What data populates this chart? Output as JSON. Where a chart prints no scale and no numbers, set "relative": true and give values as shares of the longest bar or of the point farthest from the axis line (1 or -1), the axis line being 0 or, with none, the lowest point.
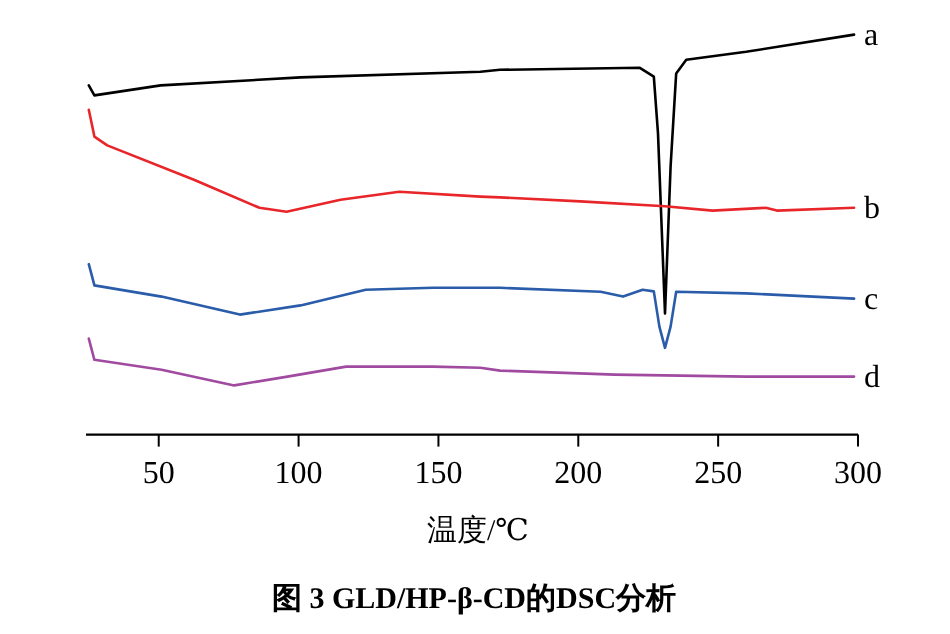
{
  "chart_data": {
    "type": "line",
    "relative": true,
    "title": "图 3 GLD/HP-β-CD的DSC分析",
    "xlabel": "温度/℃",
    "xlim": [
      24,
      300
    ],
    "xticks": [
      50,
      100,
      150,
      200,
      250,
      300
    ],
    "series": [
      {
        "name": "a",
        "color": "#000000",
        "x": [
          25,
          27,
          50.7,
          100.7,
          165,
          172,
          222,
          227,
          228.5,
          231,
          233,
          235,
          238.6,
          260,
          298.6
        ],
        "values": [
          0.873,
          0.848,
          0.873,
          0.893,
          0.907,
          0.912,
          0.917,
          0.895,
          0.753,
          0.303,
          0.671,
          0.903,
          0.937,
          0.957,
          1.0
        ]
      },
      {
        "name": "b",
        "color": "#e8262a",
        "x": [
          25,
          27,
          31.6,
          62.6,
          86,
          95.7,
          115,
          136,
          165,
          172,
          200.7,
          231,
          248,
          267,
          271,
          298.6
        ],
        "values": [
          0.812,
          0.745,
          0.723,
          0.637,
          0.567,
          0.557,
          0.587,
          0.607,
          0.595,
          0.593,
          0.583,
          0.571,
          0.56,
          0.567,
          0.56,
          0.567
        ]
      },
      {
        "name": "c",
        "color": "#2a5caa",
        "x": [
          25,
          27,
          51,
          79,
          100.7,
          124,
          148,
          165,
          172,
          208,
          216,
          223,
          227,
          229,
          231,
          233,
          235,
          260,
          298.6
        ],
        "values": [
          0.426,
          0.373,
          0.345,
          0.3,
          0.323,
          0.362,
          0.367,
          0.367,
          0.367,
          0.357,
          0.345,
          0.362,
          0.358,
          0.27,
          0.217,
          0.27,
          0.357,
          0.353,
          0.34
        ]
      },
      {
        "name": "d",
        "color": "#a04aa0",
        "x": [
          25,
          27,
          51,
          77,
          96,
          117,
          148,
          165,
          172,
          213,
          260,
          298.6
        ],
        "values": [
          0.24,
          0.187,
          0.162,
          0.123,
          0.145,
          0.17,
          0.17,
          0.167,
          0.16,
          0.15,
          0.145,
          0.145
        ]
      }
    ]
  }
}
